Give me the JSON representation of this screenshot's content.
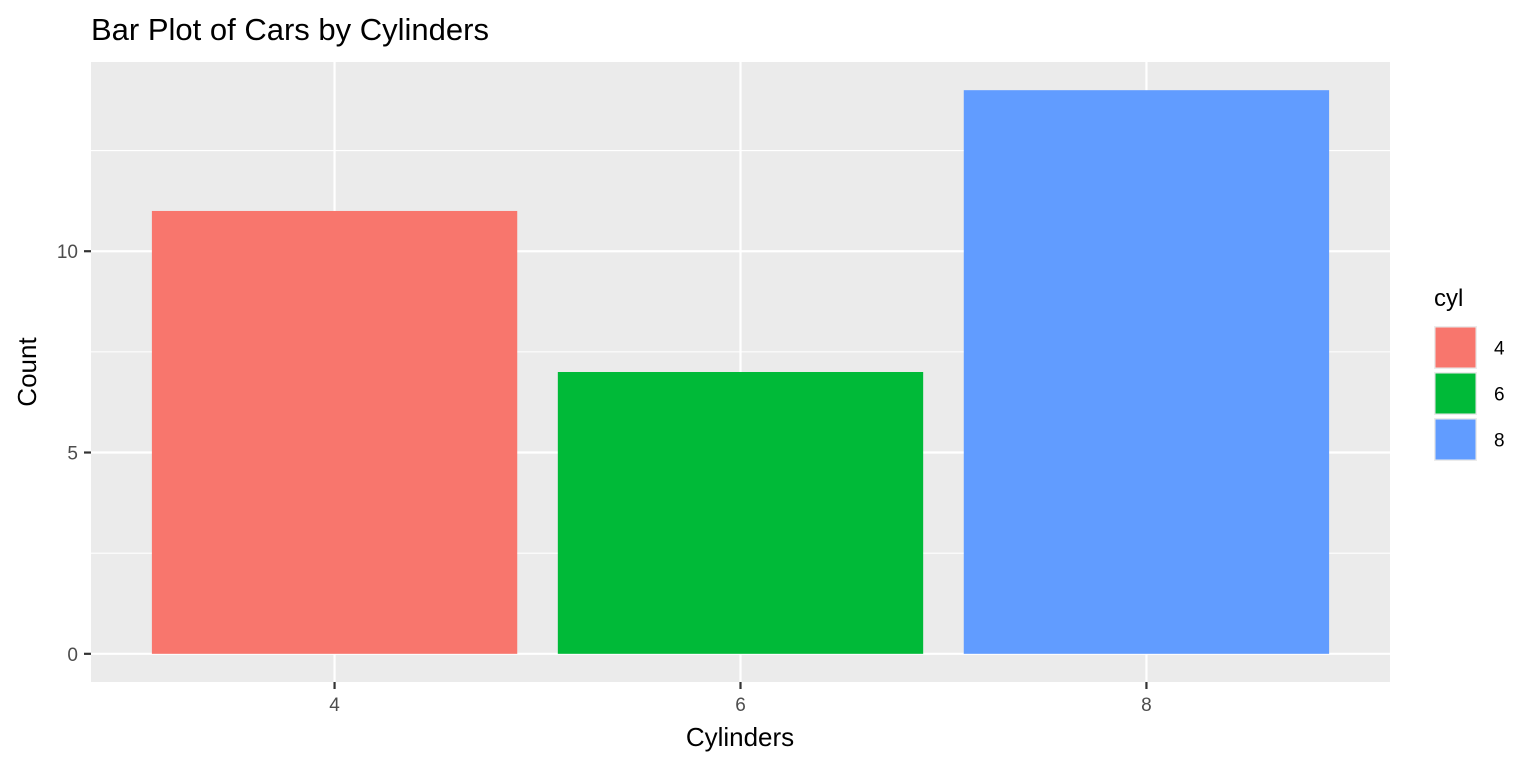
{
  "chart_data": {
    "type": "bar",
    "title": "Bar Plot of Cars by Cylinders",
    "xlabel": "Cylinders",
    "ylabel": "Count",
    "categories": [
      "4",
      "6",
      "8"
    ],
    "values": [
      11,
      7,
      14
    ],
    "colors": [
      "#F8766D",
      "#00BA38",
      "#619CFF"
    ],
    "ylim": [
      -0.7,
      14.7
    ],
    "yticks": [
      0,
      5,
      10
    ],
    "grid": true,
    "legend": {
      "title": "cyl",
      "placement": "right",
      "entries": [
        {
          "label": "4",
          "color": "#F8766D"
        },
        {
          "label": "6",
          "color": "#00BA38"
        },
        {
          "label": "8",
          "color": "#619CFF"
        }
      ]
    },
    "panel_background": "#EBEBEB",
    "grid_color": "#FFFFFF"
  }
}
